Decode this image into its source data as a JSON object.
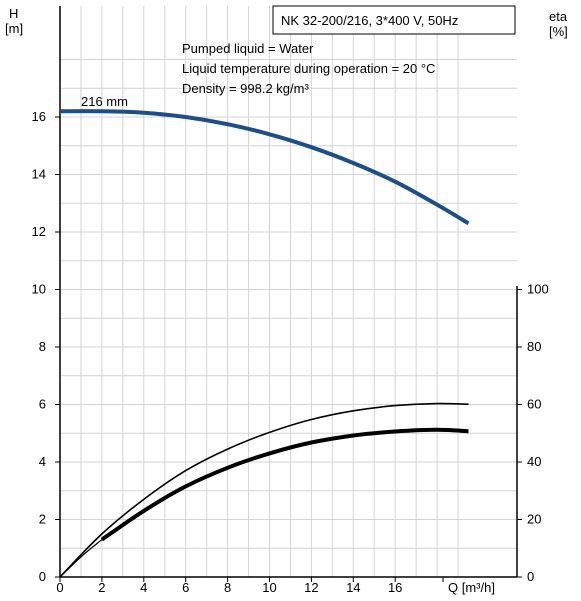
{
  "chart_data": {
    "type": "line",
    "title": "NK 32-200/216, 3*400 V, 50Hz",
    "notes": [
      "Pumped liquid = Water",
      "Liquid temperature during operation = 20 °C",
      "Density = 998.2 kg/m³"
    ],
    "y_left_label": [
      "H",
      "[m]"
    ],
    "y_right_label": [
      "eta",
      "[%]"
    ],
    "x_label": "Q [m³/h]",
    "x_range": [
      0,
      20
    ],
    "x_ticks": [
      0,
      2,
      4,
      6,
      8,
      10,
      12,
      14,
      16
    ],
    "y_left_range": [
      0,
      18.5
    ],
    "y_left_ticks": [
      0,
      2,
      4,
      6,
      8,
      10,
      12,
      14,
      16
    ],
    "y_right_range": [
      0,
      185
    ],
    "y_right_ticks": [
      0,
      20,
      40,
      60,
      80,
      100
    ],
    "grid": true,
    "series": [
      {
        "name": "216 mm",
        "axis": "left",
        "color": "#1c4f86",
        "x": [
          0,
          2,
          4,
          6,
          8,
          10,
          12,
          14,
          16,
          18,
          19.5
        ],
        "y": [
          16.2,
          16.2,
          16.15,
          16.0,
          15.75,
          15.4,
          14.95,
          14.4,
          13.75,
          12.95,
          12.3
        ],
        "thin_extension": {
          "x": [
            0,
            2
          ],
          "y": [
            16.2,
            16.2
          ]
        }
      },
      {
        "axis": "right",
        "color": "#000000",
        "width": "thick",
        "x": [
          2,
          4,
          6,
          8,
          10,
          12,
          14,
          16,
          18,
          19.5
        ],
        "y": [
          13,
          23,
          31.5,
          38,
          43,
          46.8,
          49.2,
          50.6,
          51.2,
          50.7
        ],
        "thin_extension": {
          "x": [
            0,
            1,
            2
          ],
          "y": [
            0,
            7,
            13
          ]
        }
      },
      {
        "axis": "right",
        "color": "#000000",
        "width": "thin",
        "x": [
          0,
          2,
          4,
          6,
          8,
          10,
          12,
          14,
          16,
          18,
          19.5
        ],
        "y": [
          0,
          15,
          27,
          37,
          44.5,
          50.3,
          54.8,
          57.8,
          59.6,
          60.3,
          60.1
        ]
      }
    ]
  }
}
